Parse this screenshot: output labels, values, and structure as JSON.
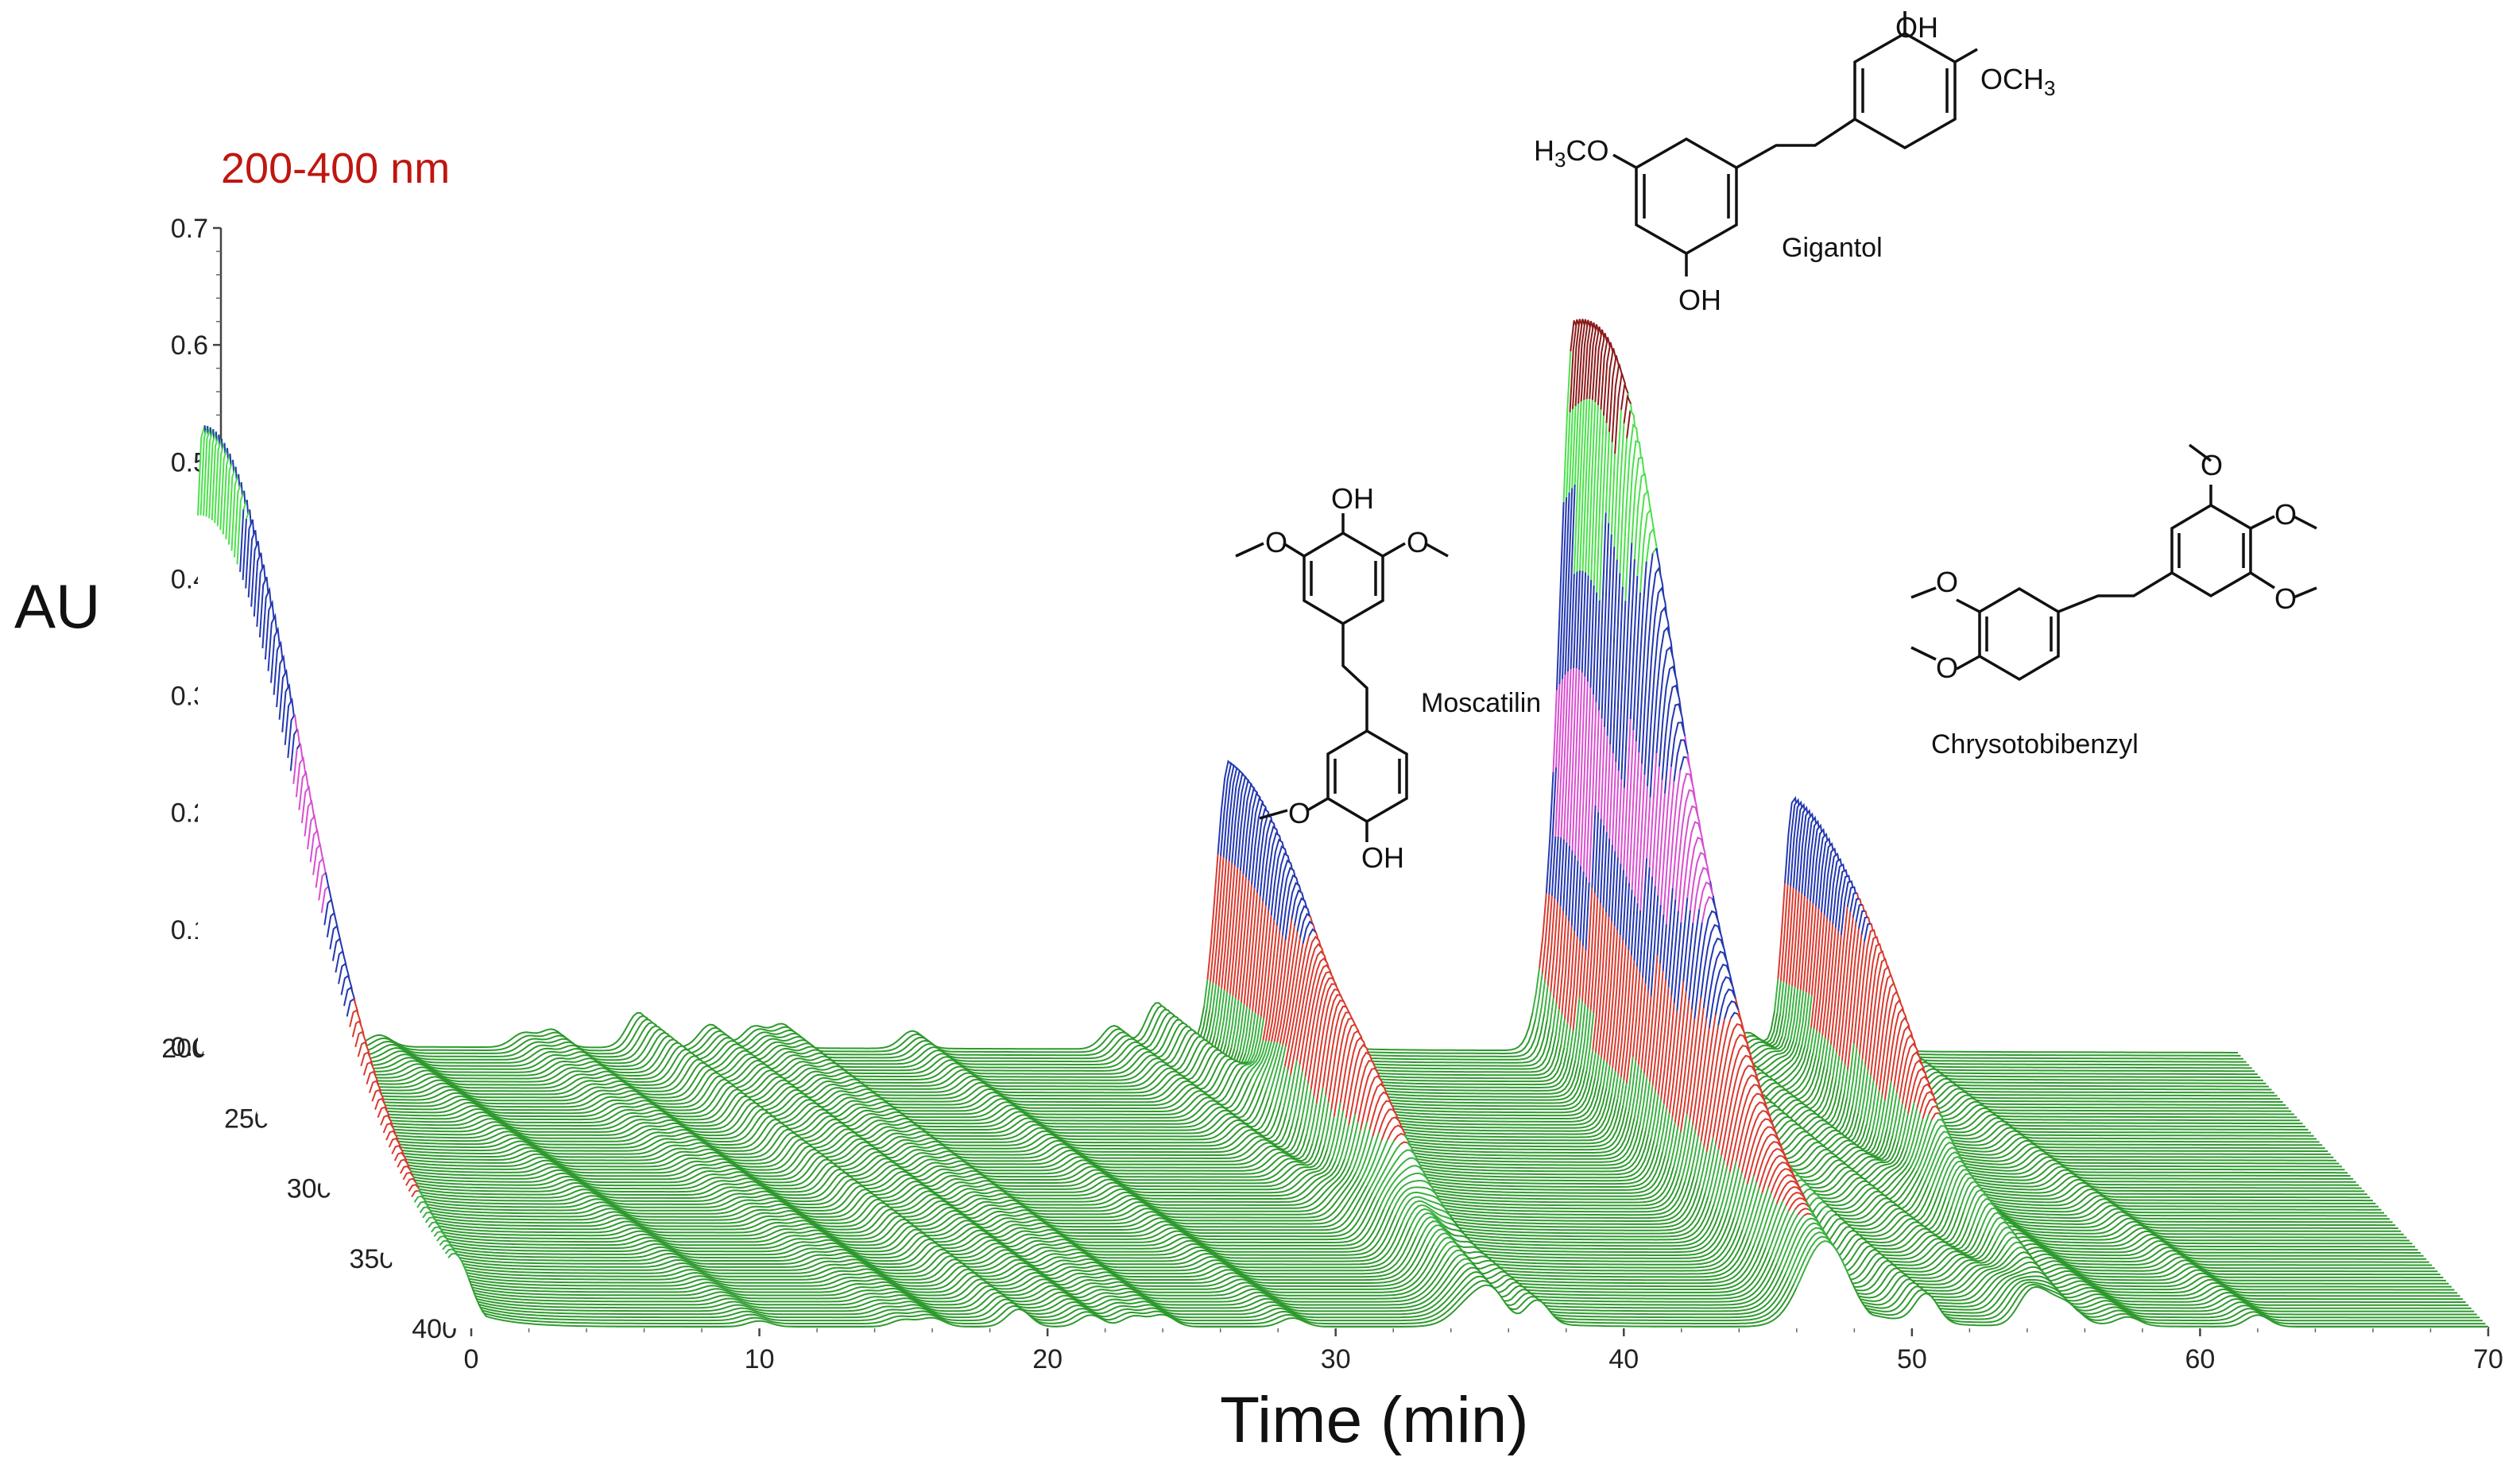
{
  "chart_data": {
    "type": "3d-waterfall",
    "title": "200-400 nm",
    "ylabel": "AU",
    "xlabel": "Time (min)",
    "x_ticks": [
      "0",
      "10",
      "20",
      "30",
      "40",
      "50",
      "60",
      "70"
    ],
    "y_ticks": [
      "0.0",
      "0.1",
      "0.2",
      "0.3",
      "0.4",
      "0.5",
      "0.6",
      "0.7"
    ],
    "z_ticks": [
      "200",
      "250",
      "300",
      "350",
      "400"
    ],
    "xlim": [
      0,
      70
    ],
    "ylim": [
      0,
      0.7
    ],
    "zlim": [
      200,
      400
    ],
    "colors": {
      "baseline": "#2e9a2e",
      "level_1": "#3cb043",
      "level_2": "#d83a2e",
      "level_3": "#2438b0",
      "level_4": "#d84fd0",
      "level_5": "#4be04b",
      "level_6": "#8b1a1a"
    },
    "peaks": [
      {
        "time": -0.6,
        "height": 0.54,
        "width": 0.35
      },
      {
        "time": 35.0,
        "height": 0.25,
        "width": 0.45
      },
      {
        "time": 47.0,
        "height": 0.63,
        "width": 0.5
      },
      {
        "time": 54.6,
        "height": 0.22,
        "width": 0.35
      }
    ],
    "minor_peaks": [
      {
        "time": 5.5,
        "height": 0.01
      },
      {
        "time": 10.5,
        "height": 0.012
      },
      {
        "time": 11.5,
        "height": 0.015
      },
      {
        "time": 14.5,
        "height": 0.03
      },
      {
        "time": 17.0,
        "height": 0.02
      },
      {
        "time": 18.5,
        "height": 0.018
      },
      {
        "time": 19.5,
        "height": 0.02
      },
      {
        "time": 24.0,
        "height": 0.015
      },
      {
        "time": 31.0,
        "height": 0.02
      },
      {
        "time": 32.5,
        "height": 0.04
      },
      {
        "time": 46.0,
        "height": 0.05
      },
      {
        "time": 49.5,
        "height": 0.03
      },
      {
        "time": 51.0,
        "height": 0.025
      },
      {
        "time": 53.0,
        "height": 0.015
      },
      {
        "time": 57.5,
        "height": 0.02
      }
    ],
    "compounds": [
      {
        "name": "Moscatilin",
        "peak_time": 35.0
      },
      {
        "name": "Gigantol",
        "peak_time": 47.0
      },
      {
        "name": "Chrysotobibenzyl",
        "peak_time": 54.6
      }
    ]
  },
  "structures": {
    "gigantol": {
      "oh_top": "OH",
      "och3_right": "OCH",
      "och3_sub": "3",
      "h3co_left_main": "H",
      "h3co_left_sub": "3",
      "h3co_left_rest": "CO",
      "oh_bottom": "OH"
    },
    "moscatilin": {
      "oh_top": "OH",
      "o_left": "O",
      "o_right": "O",
      "o_lower": "O",
      "oh_lower": "OH"
    },
    "chrysotobibenzyl": {
      "o_top": "O",
      "o_right1": "O",
      "o_right2": "O",
      "o_left1": "O",
      "o_left2": "O"
    }
  }
}
